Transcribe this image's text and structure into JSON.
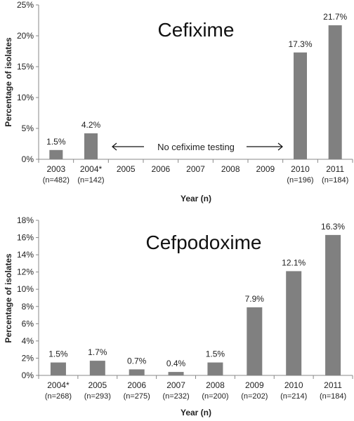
{
  "chart_data": [
    {
      "type": "bar",
      "title": "Cefixime",
      "xlabel": "Year (n)",
      "ylabel": "Percentage of isolates",
      "ylim": [
        0,
        25
      ],
      "yticks": [
        "0%",
        "5%",
        "10%",
        "15%",
        "20%",
        "25%"
      ],
      "categories": [
        "2003",
        "2004*",
        "2005",
        "2006",
        "2007",
        "2008",
        "2009",
        "2010",
        "2011"
      ],
      "category_counts": [
        "(n=482)",
        "(n=142)",
        "",
        "",
        "",
        "",
        "",
        "(n=196)",
        "(n=184)"
      ],
      "values": [
        1.5,
        4.2,
        null,
        null,
        null,
        null,
        null,
        17.3,
        21.7
      ],
      "data_labels": [
        "1.5%",
        "4.2%",
        "",
        "",
        "",
        "",
        "",
        "17.3%",
        "21.7%"
      ],
      "annotation": "No cefixime testing",
      "colors": {
        "bar": "#808080"
      }
    },
    {
      "type": "bar",
      "title": "Cefpodoxime",
      "xlabel": "Year (n)",
      "ylabel": "Percentage of isolates",
      "ylim": [
        0,
        18
      ],
      "yticks": [
        "0%",
        "2%",
        "4%",
        "6%",
        "8%",
        "10%",
        "12%",
        "14%",
        "16%",
        "18%"
      ],
      "categories": [
        "2004*",
        "2005",
        "2006",
        "2007",
        "2008",
        "2009",
        "2010",
        "2011"
      ],
      "category_counts": [
        "(n=268)",
        "(n=293)",
        "(n=275)",
        "(n=232)",
        "(n=200)",
        "(n=202)",
        "(n=214)",
        "(n=184)"
      ],
      "values": [
        1.5,
        1.7,
        0.7,
        0.4,
        1.5,
        7.9,
        12.1,
        16.3
      ],
      "data_labels": [
        "1.5%",
        "1.7%",
        "0.7%",
        "0.4%",
        "1.5%",
        "7.9%",
        "12.1%",
        "16.3%"
      ],
      "colors": {
        "bar": "#808080"
      }
    }
  ]
}
